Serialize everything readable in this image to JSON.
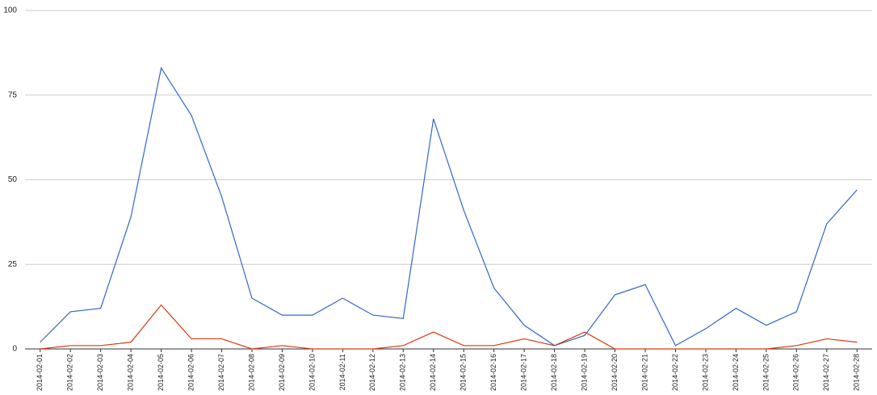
{
  "chart_data": {
    "type": "line",
    "categories": [
      "2014-02-01",
      "2014-02-02",
      "2014-02-03",
      "2014-02-04",
      "2014-02-05",
      "2014-02-06",
      "2014-02-07",
      "2014-02-08",
      "2014-02-09",
      "2014-02-10",
      "2014-02-11",
      "2014-02-12",
      "2014-02-13",
      "2014-02-14",
      "2014-02-15",
      "2014-02-16",
      "2014-02-17",
      "2014-02-18",
      "2014-02-19",
      "2014-02-20",
      "2014-02-21",
      "2014-02-22",
      "2014-02-23",
      "2014-02-24",
      "2014-02-25",
      "2014-02-26",
      "2014-02-27",
      "2014-02-28"
    ],
    "series": [
      {
        "color": "#3366cc",
        "values": [
          2,
          11,
          12,
          39,
          83,
          69,
          45,
          15,
          10,
          10,
          15,
          10,
          9,
          68,
          41,
          18,
          7,
          1,
          4,
          16,
          19,
          1,
          6,
          12,
          7,
          11,
          37,
          47
        ]
      },
      {
        "color": "#dc3912",
        "values": [
          0,
          1,
          1,
          2,
          13,
          3,
          3,
          0,
          1,
          0,
          0,
          0,
          1,
          5,
          1,
          1,
          3,
          1,
          5,
          0,
          0,
          0,
          0,
          0,
          0,
          1,
          3,
          2
        ]
      }
    ],
    "ylim": [
      0,
      100
    ],
    "yticks": [
      0,
      25,
      50,
      75,
      100
    ],
    "grid": true
  }
}
